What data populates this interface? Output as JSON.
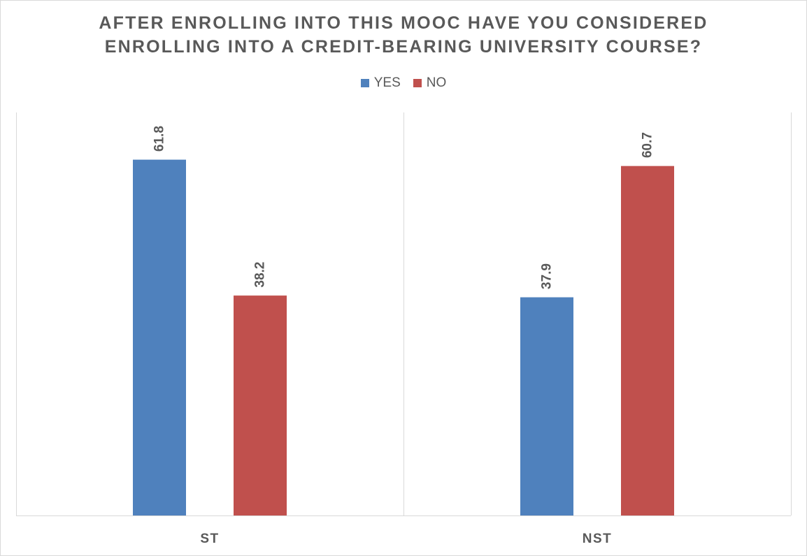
{
  "chart_data": {
    "type": "bar",
    "title_lines": [
      "AFTER ENROLLING INTO THIS MOOC HAVE YOU CONSIDERED",
      "ENROLLING INTO A CREDIT-BEARING UNIVERSITY COURSE?"
    ],
    "categories": [
      "ST",
      "NST"
    ],
    "series": [
      {
        "name": "YES",
        "color": "#4f81bd",
        "values": [
          61.8,
          37.9
        ]
      },
      {
        "name": "NO",
        "color": "#c0504d",
        "values": [
          38.2,
          60.7
        ]
      }
    ],
    "ylim": [
      0,
      70
    ],
    "legend_position": "top-center",
    "grid": false,
    "category_separators": true,
    "data_labels": true
  }
}
